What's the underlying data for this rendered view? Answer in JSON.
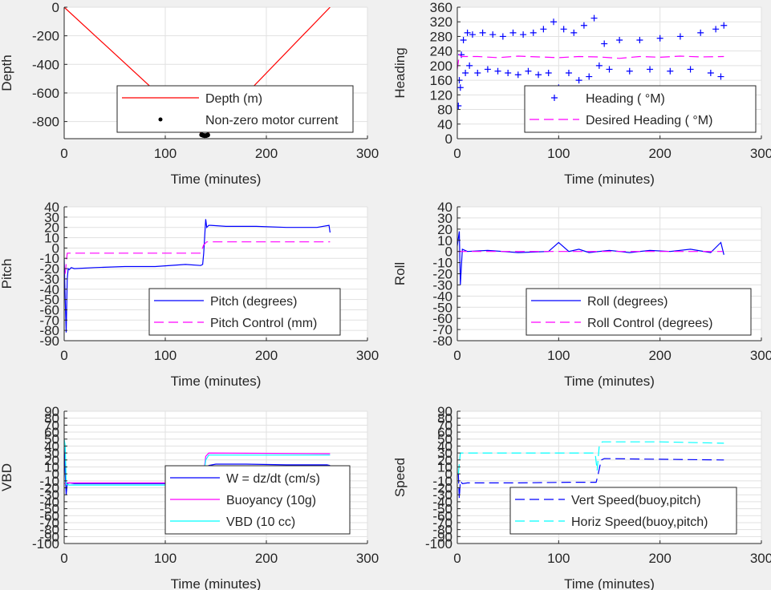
{
  "figure": {
    "background": "#f0f0f0"
  },
  "chart_data": [
    {
      "id": "depth",
      "type": "line",
      "xlabel": "Time (minutes)",
      "ylabel": "Depth",
      "xlim": [
        0,
        300
      ],
      "ylim": [
        -920,
        0
      ],
      "xticks": [
        0,
        100,
        200,
        300
      ],
      "yticks": [
        0,
        -200,
        -400,
        -600,
        -800
      ],
      "grid": true,
      "legend_position": "bottom-center",
      "series": [
        {
          "name": "Depth (m)",
          "style": "line",
          "color": "#ff0000",
          "x": [
            0,
            138,
            140,
            263
          ],
          "y": [
            0,
            -900,
            -900,
            0
          ]
        },
        {
          "name": "Non-zero motor current",
          "style": "dots",
          "color": "#000000",
          "x": [
            136,
            137.5,
            139,
            140.5,
            142
          ],
          "y": [
            -893,
            -897,
            -899,
            -898,
            -894
          ]
        }
      ]
    },
    {
      "id": "heading",
      "type": "line",
      "xlabel": "Time (minutes)",
      "ylabel": "Heading",
      "xlim": [
        0,
        300
      ],
      "ylim": [
        0,
        360
      ],
      "xticks": [
        0,
        100,
        200,
        300
      ],
      "yticks": [
        0,
        40,
        80,
        120,
        160,
        200,
        240,
        280,
        320,
        360
      ],
      "grid": true,
      "legend_position": "bottom-right",
      "series": [
        {
          "name": "Heading ( °M)",
          "style": "plus",
          "color": "#0000ff",
          "x": [
            1,
            2,
            3,
            4,
            6,
            8,
            10,
            12,
            15,
            20,
            25,
            30,
            35,
            40,
            45,
            50,
            55,
            60,
            65,
            70,
            75,
            80,
            85,
            90,
            95,
            100,
            105,
            110,
            115,
            120,
            125,
            130,
            135,
            140,
            145,
            150,
            160,
            170,
            180,
            190,
            200,
            210,
            220,
            230,
            240,
            250,
            255,
            260,
            263
          ],
          "y": [
            90,
            160,
            140,
            230,
            270,
            180,
            290,
            200,
            285,
            180,
            290,
            190,
            285,
            185,
            280,
            180,
            290,
            175,
            285,
            185,
            290,
            175,
            300,
            180,
            320,
            140,
            300,
            180,
            290,
            160,
            310,
            170,
            330,
            200,
            260,
            190,
            270,
            185,
            270,
            190,
            275,
            185,
            280,
            190,
            290,
            180,
            300,
            170,
            310
          ]
        },
        {
          "name": "Desired Heading ( °M)",
          "style": "dash",
          "color": "#ff00ff",
          "x": [
            0,
            2,
            4,
            20,
            40,
            60,
            80,
            100,
            120,
            140,
            160,
            180,
            200,
            220,
            240,
            263
          ],
          "y": [
            190,
            230,
            225,
            225,
            222,
            226,
            224,
            222,
            225,
            224,
            220,
            225,
            223,
            226,
            224,
            225
          ]
        }
      ]
    },
    {
      "id": "pitch",
      "type": "line",
      "xlabel": "Time (minutes)",
      "ylabel": "Pitch",
      "xlim": [
        0,
        300
      ],
      "ylim": [
        -90,
        40
      ],
      "xticks": [
        0,
        100,
        200,
        300
      ],
      "yticks": [
        40,
        30,
        20,
        10,
        0,
        -10,
        -20,
        -30,
        -40,
        -50,
        -60,
        -70,
        -80,
        -90
      ],
      "grid": true,
      "legend_position": "bottom-right",
      "series": [
        {
          "name": "Pitch (degrees)",
          "style": "line",
          "color": "#0000ff",
          "x": [
            0,
            1,
            2,
            3,
            4,
            5,
            7,
            10,
            30,
            60,
            90,
            120,
            135,
            137,
            138,
            140,
            141,
            143,
            145,
            160,
            190,
            220,
            250,
            262,
            263
          ],
          "y": [
            -10,
            -50,
            -82,
            -30,
            -20,
            -21,
            -19,
            -20,
            -19,
            -18,
            -18,
            -16,
            -17,
            -16,
            -5,
            28,
            20,
            22,
            22,
            21,
            21,
            20,
            20,
            22,
            15
          ]
        },
        {
          "name": "Pitch Control (mm)",
          "style": "dash",
          "color": "#ff00ff",
          "x": [
            1,
            3,
            10,
            135,
            138,
            141,
            263
          ],
          "y": [
            -25,
            -5,
            -5,
            -5,
            3,
            6,
            6
          ]
        }
      ]
    },
    {
      "id": "roll",
      "type": "line",
      "xlabel": "Time (minutes)",
      "ylabel": "Roll",
      "xlim": [
        0,
        300
      ],
      "ylim": [
        -80,
        40
      ],
      "xticks": [
        0,
        100,
        200,
        300
      ],
      "yticks": [
        40,
        30,
        20,
        10,
        0,
        -10,
        -20,
        -30,
        -40,
        -50,
        -60,
        -70,
        -80
      ],
      "grid": true,
      "legend_position": "bottom-right",
      "series": [
        {
          "name": "Roll (degrees)",
          "style": "line",
          "color": "#0000ff",
          "x": [
            0,
            2,
            3,
            5,
            10,
            30,
            60,
            90,
            100,
            110,
            120,
            130,
            140,
            150,
            170,
            190,
            210,
            230,
            250,
            260,
            263
          ],
          "y": [
            5,
            18,
            -30,
            2,
            0,
            1,
            -1,
            0,
            8,
            0,
            2,
            -1,
            0,
            1,
            -1,
            1,
            0,
            2,
            -1,
            8,
            -3
          ]
        },
        {
          "name": "Roll Control (degrees)",
          "style": "dash",
          "color": "#ff00ff",
          "x": [
            0,
            262
          ],
          "y": [
            0,
            0
          ]
        }
      ]
    },
    {
      "id": "vbd",
      "type": "line",
      "xlabel": "Time (minutes)",
      "ylabel": "VBD",
      "xlim": [
        0,
        300
      ],
      "ylim": [
        -100,
        90
      ],
      "xticks": [
        0,
        100,
        200,
        300
      ],
      "yticks": [
        90,
        80,
        70,
        60,
        50,
        40,
        30,
        20,
        10,
        0,
        -10,
        -20,
        -30,
        -40,
        -50,
        -60,
        -70,
        -80,
        -90,
        -100
      ],
      "grid": true,
      "legend_position": "bottom-right",
      "series": [
        {
          "name": "W = dz/dt (cm/s)",
          "style": "line",
          "color": "#0000ff",
          "x": [
            0,
            1,
            2,
            3,
            5,
            10,
            40,
            80,
            120,
            137,
            140,
            143,
            150,
            180,
            220,
            260,
            263
          ],
          "y": [
            40,
            0,
            -30,
            -14,
            -13,
            -14,
            -14,
            -14,
            -14,
            -14,
            0,
            12,
            14,
            14,
            13,
            13,
            12
          ]
        },
        {
          "name": "Buoyancy (10g)",
          "style": "line",
          "color": "#ff00ff",
          "x": [
            0,
            2,
            5,
            137,
            140,
            143,
            263
          ],
          "y": [
            -14,
            -13,
            -13,
            -13,
            25,
            30,
            29
          ]
        },
        {
          "name": "VBD (10 cc)",
          "style": "line",
          "color": "#00ffff",
          "x": [
            0,
            1,
            2,
            5,
            137,
            140,
            143,
            263
          ],
          "y": [
            50,
            40,
            -15,
            -16,
            -16,
            20,
            27,
            27
          ]
        }
      ]
    },
    {
      "id": "speed",
      "type": "line",
      "xlabel": "Time (minutes)",
      "ylabel": "Speed",
      "xlim": [
        0,
        300
      ],
      "ylim": [
        -100,
        90
      ],
      "xticks": [
        0,
        100,
        200,
        300
      ],
      "yticks": [
        90,
        80,
        70,
        60,
        50,
        40,
        30,
        20,
        10,
        0,
        -10,
        -20,
        -30,
        -40,
        -50,
        -60,
        -70,
        -80,
        -90,
        -100
      ],
      "grid": true,
      "legend_position": "bottom-right",
      "series": [
        {
          "name": "Vert Speed(buoy,pitch)",
          "style": "dash",
          "color": "#0000ff",
          "x": [
            1,
            2,
            3,
            5,
            10,
            60,
            110,
            137,
            139,
            142,
            145,
            200,
            263
          ],
          "y": [
            0,
            -35,
            -10,
            -14,
            -13,
            -13,
            -12,
            -12,
            0,
            20,
            22,
            21,
            20
          ]
        },
        {
          "name": "Horiz Speed(buoy,pitch)",
          "style": "dash",
          "color": "#00ffff",
          "x": [
            1,
            3,
            5,
            60,
            120,
            136,
            138,
            140,
            143,
            200,
            263
          ],
          "y": [
            0,
            30,
            30,
            30,
            30,
            30,
            5,
            40,
            46,
            46,
            44
          ]
        }
      ]
    }
  ]
}
